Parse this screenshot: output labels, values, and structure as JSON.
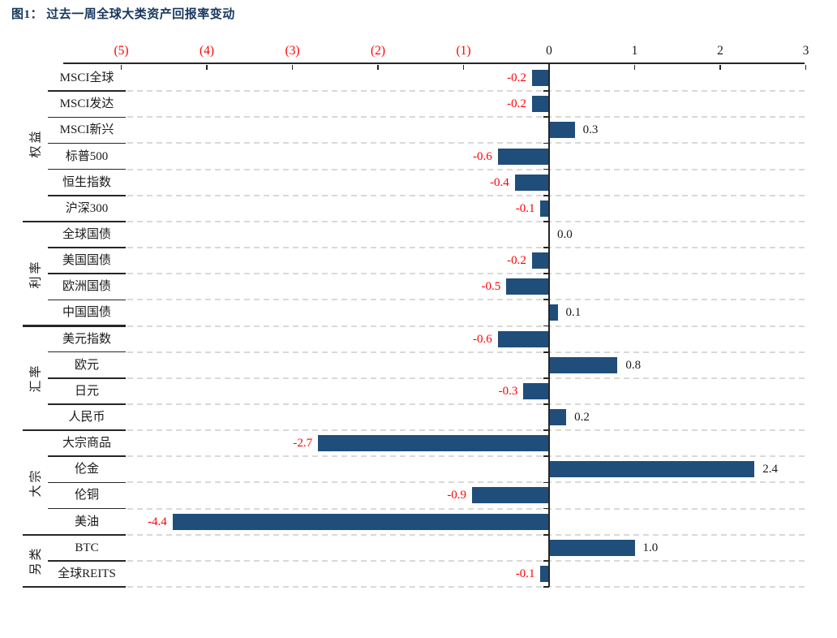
{
  "title": {
    "text": "图1：  过去一周全球大类资产回报率变动",
    "color": "#17375E"
  },
  "chart_data": {
    "type": "bar",
    "orientation": "horizontal",
    "title": "过去一周全球大类资产回报率变动",
    "xlabel": "",
    "ylabel": "",
    "xlim": [
      -5.7,
      3
    ],
    "grid": "dashed-horizontal-row-separators",
    "x_ticks": [
      {
        "value": -5,
        "label": "(5)",
        "color": "#FF0000"
      },
      {
        "value": -4,
        "label": "(4)",
        "color": "#FF0000"
      },
      {
        "value": -3,
        "label": "(3)",
        "color": "#FF0000"
      },
      {
        "value": -2,
        "label": "(2)",
        "color": "#FF0000"
      },
      {
        "value": -1,
        "label": "(1)",
        "color": "#FF0000"
      },
      {
        "value": 0,
        "label": "0",
        "color": "#1A1A1A"
      },
      {
        "value": 1,
        "label": "1",
        "color": "#1A1A1A"
      },
      {
        "value": 2,
        "label": "2",
        "color": "#1A1A1A"
      },
      {
        "value": 3,
        "label": "3",
        "color": "#1A1A1A"
      }
    ],
    "groups": [
      {
        "name": "权益",
        "items": [
          {
            "label": "MSCI全球",
            "value": -0.2
          },
          {
            "label": "MSCI发达",
            "value": -0.2
          },
          {
            "label": "MSCI新兴",
            "value": 0.3
          },
          {
            "label": "标普500",
            "value": -0.6
          },
          {
            "label": "恒生指数",
            "value": -0.4
          },
          {
            "label": "沪深300",
            "value": -0.1
          }
        ]
      },
      {
        "name": "利率",
        "items": [
          {
            "label": "全球国债",
            "value": 0.0
          },
          {
            "label": "美国国债",
            "value": -0.2
          },
          {
            "label": "欧洲国债",
            "value": -0.5
          },
          {
            "label": "中国国债",
            "value": 0.1
          }
        ]
      },
      {
        "name": "汇率",
        "items": [
          {
            "label": "美元指数",
            "value": -0.6
          },
          {
            "label": "欧元",
            "value": 0.8
          },
          {
            "label": "日元",
            "value": -0.3
          },
          {
            "label": "人民币",
            "value": 0.2
          }
        ]
      },
      {
        "name": "大宗",
        "items": [
          {
            "label": "大宗商品",
            "value": -2.7
          },
          {
            "label": "伦金",
            "value": 2.4
          },
          {
            "label": "伦铜",
            "value": -0.9
          },
          {
            "label": "美油",
            "value": -4.4
          }
        ]
      },
      {
        "name": "另类",
        "items": [
          {
            "label": "BTC",
            "value": 1.0
          },
          {
            "label": "全球REITS",
            "value": -0.1
          }
        ]
      }
    ],
    "colors": {
      "bar": "#1F4E7B",
      "negative_label": "#FF0000",
      "positive_label": "#1A1A1A",
      "axis": "#262626",
      "grid": "#D9D9D9",
      "category_text": "#1A1A1A"
    }
  }
}
